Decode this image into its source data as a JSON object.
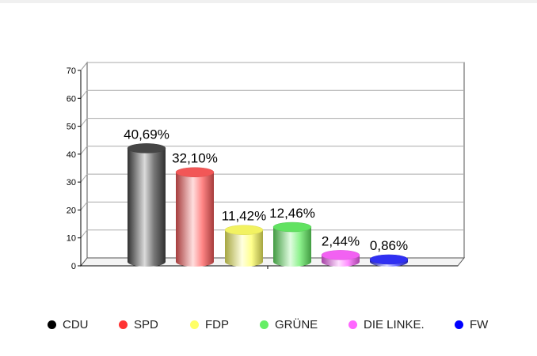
{
  "chart_data": {
    "type": "bar",
    "categories": [
      "CDU",
      "SPD",
      "FDP",
      "GRÜNE",
      "DIE LINKE.",
      "FW"
    ],
    "values": [
      40.69,
      32.1,
      11.42,
      12.46,
      2.44,
      0.86
    ],
    "data_labels": [
      "40,69%",
      "32,10%",
      "11,42%",
      "12,46%",
      "2,44%",
      "0,86%"
    ],
    "colors": [
      "#4a4a4a",
      "#ff5c5c",
      "#ffff66",
      "#66ee66",
      "#ff66ff",
      "#3333ff"
    ],
    "ylim": [
      0,
      70
    ],
    "yticks": [
      "0",
      "10",
      "20",
      "30",
      "40",
      "50",
      "60",
      "70"
    ],
    "grid": true,
    "legend_position": "bottom",
    "title": "",
    "xlabel": "",
    "ylabel": ""
  },
  "legend": {
    "items": [
      {
        "label": "CDU",
        "color": "#000000"
      },
      {
        "label": "SPD",
        "color": "#ff3333"
      },
      {
        "label": "FDP",
        "color": "#ffff66"
      },
      {
        "label": "GRÜNE",
        "color": "#66ee66"
      },
      {
        "label": "DIE LINKE.",
        "color": "#ff66ff"
      },
      {
        "label": "FW",
        "color": "#0000ff"
      }
    ]
  }
}
